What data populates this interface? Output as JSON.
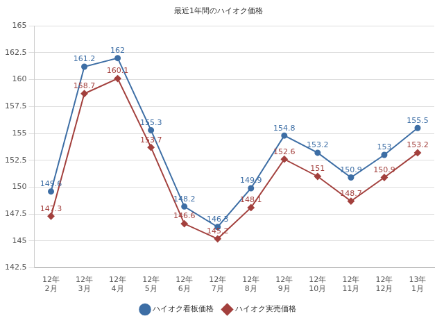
{
  "chart_data": {
    "type": "line",
    "title": "最近1年間のハイオク価格",
    "categories": [
      [
        "12年",
        "2月"
      ],
      [
        "12年",
        "3月"
      ],
      [
        "12年",
        "4月"
      ],
      [
        "12年",
        "5月"
      ],
      [
        "12年",
        "6月"
      ],
      [
        "12年",
        "7月"
      ],
      [
        "12年",
        "8月"
      ],
      [
        "12年",
        "9月"
      ],
      [
        "12年",
        "10月"
      ],
      [
        "12年",
        "11月"
      ],
      [
        "12年",
        "12月"
      ],
      [
        "13年",
        "1月"
      ]
    ],
    "series": [
      {
        "name": "ハイオク看板価格",
        "color": "#3d6ea5",
        "marker": "circle",
        "values": [
          149.6,
          161.2,
          162,
          155.3,
          148.2,
          146.3,
          149.9,
          154.8,
          153.2,
          150.9,
          153,
          155.5
        ]
      },
      {
        "name": "ハイオク実売価格",
        "color": "#a3403d",
        "marker": "diamond",
        "values": [
          147.3,
          158.7,
          160.1,
          153.7,
          146.6,
          145.2,
          148.1,
          152.6,
          151,
          148.7,
          150.9,
          153.2
        ]
      }
    ],
    "ylim": [
      142.5,
      165
    ],
    "yticks": [
      142.5,
      145,
      147.5,
      150,
      152.5,
      155,
      157.5,
      160,
      162.5,
      165
    ],
    "grid": true,
    "legend": "bottom",
    "data_labels": true
  }
}
